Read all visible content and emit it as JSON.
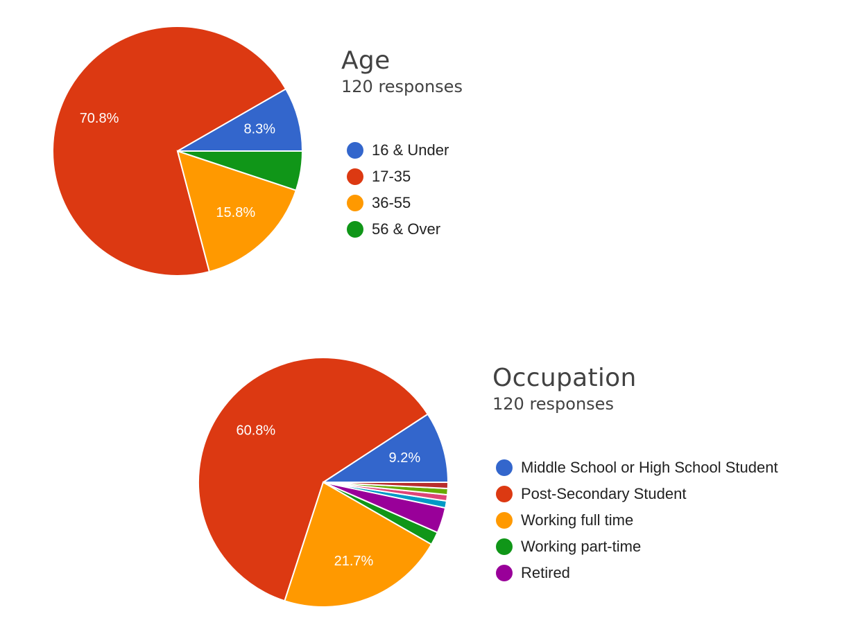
{
  "chart_data": [
    {
      "type": "pie",
      "title": "Age",
      "subtitle": "120 responses",
      "legend_position": "right",
      "slices": [
        {
          "name": "16 & Under",
          "value": 8.3,
          "label": "8.3%",
          "color": "#3366cc"
        },
        {
          "name": "17-35",
          "value": 70.8,
          "label": "70.8%",
          "color": "#dc3912"
        },
        {
          "name": "36-55",
          "value": 15.8,
          "label": "15.8%",
          "color": "#ff9900"
        },
        {
          "name": "56 & Over",
          "value": 5.1,
          "label": "",
          "color": "#109618"
        }
      ]
    },
    {
      "type": "pie",
      "title": "Occupation",
      "subtitle": "120 responses",
      "legend_position": "right",
      "slices": [
        {
          "name": "Middle School or High School Student",
          "value": 9.2,
          "label": "9.2%",
          "color": "#3366cc",
          "in_legend": true
        },
        {
          "name": "Post-Secondary Student",
          "value": 60.8,
          "label": "60.8%",
          "color": "#dc3912",
          "in_legend": true
        },
        {
          "name": "Working full time",
          "value": 21.7,
          "label": "21.7%",
          "color": "#ff9900",
          "in_legend": true
        },
        {
          "name": "Working part-time",
          "value": 1.7,
          "label": "",
          "color": "#109618",
          "in_legend": true
        },
        {
          "name": "Retired",
          "value": 3.3,
          "label": "",
          "color": "#990099",
          "in_legend": true
        },
        {
          "name": "",
          "value": 0.9,
          "label": "",
          "color": "#0099c6",
          "in_legend": false
        },
        {
          "name": "",
          "value": 0.8,
          "label": "",
          "color": "#dd4477",
          "in_legend": false
        },
        {
          "name": "",
          "value": 0.8,
          "label": "",
          "color": "#66aa00",
          "in_legend": false
        },
        {
          "name": "",
          "value": 0.8,
          "label": "",
          "color": "#b82e2e",
          "in_legend": false
        }
      ]
    }
  ]
}
